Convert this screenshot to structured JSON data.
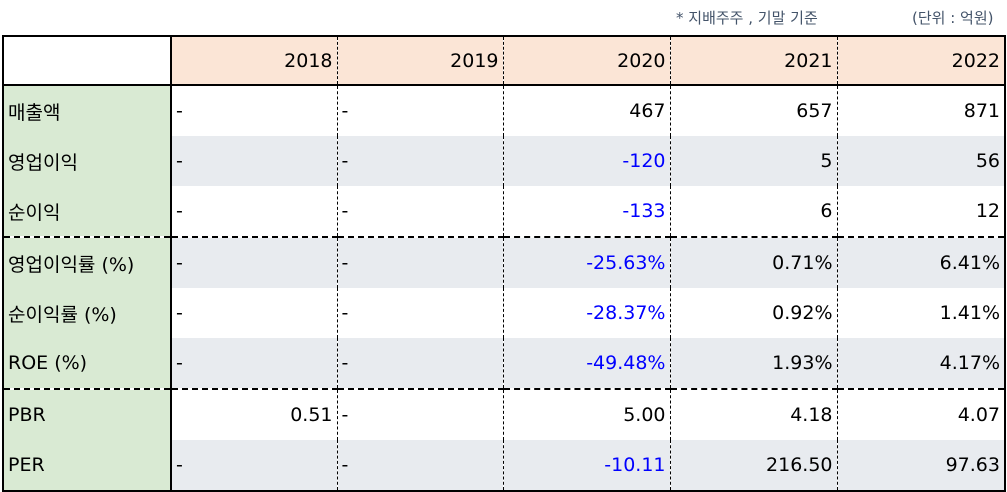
{
  "notes": {
    "basis": "* 지배주주 , 기말 기준",
    "unit": "(단위 : 억원)"
  },
  "columns": [
    "2018",
    "2019",
    "2020",
    "2021",
    "2022"
  ],
  "rows": [
    {
      "label": "매출액",
      "cells": [
        "-",
        "-",
        "467",
        "657",
        "871"
      ]
    },
    {
      "label": "영업이익",
      "cells": [
        "-",
        "-",
        "-120",
        "5",
        "56"
      ]
    },
    {
      "label": "순이익",
      "cells": [
        "-",
        "-",
        "-133",
        "6",
        "12"
      ]
    },
    {
      "label": "영업이익률 (%)",
      "cells": [
        "-",
        "-",
        "-25.63%",
        "0.71%",
        "6.41%"
      ]
    },
    {
      "label": "순이익률 (%)",
      "cells": [
        "-",
        "-",
        "-28.37%",
        "0.92%",
        "1.41%"
      ]
    },
    {
      "label": "ROE (%)",
      "cells": [
        "-",
        "-",
        "-49.48%",
        "1.93%",
        "4.17%"
      ]
    },
    {
      "label": "PBR",
      "cells": [
        "0.51",
        "-",
        "5.00",
        "4.18",
        "4.07"
      ]
    },
    {
      "label": "PER",
      "cells": [
        "-",
        "-",
        "-10.11",
        "216.50",
        "97.63"
      ]
    }
  ],
  "colors": {
    "header_bg": "#fbe5d6",
    "label_bg": "#d9ead3",
    "shade_bg": "#e8ebef",
    "negative": "#0000ff",
    "note": "#44546a"
  }
}
